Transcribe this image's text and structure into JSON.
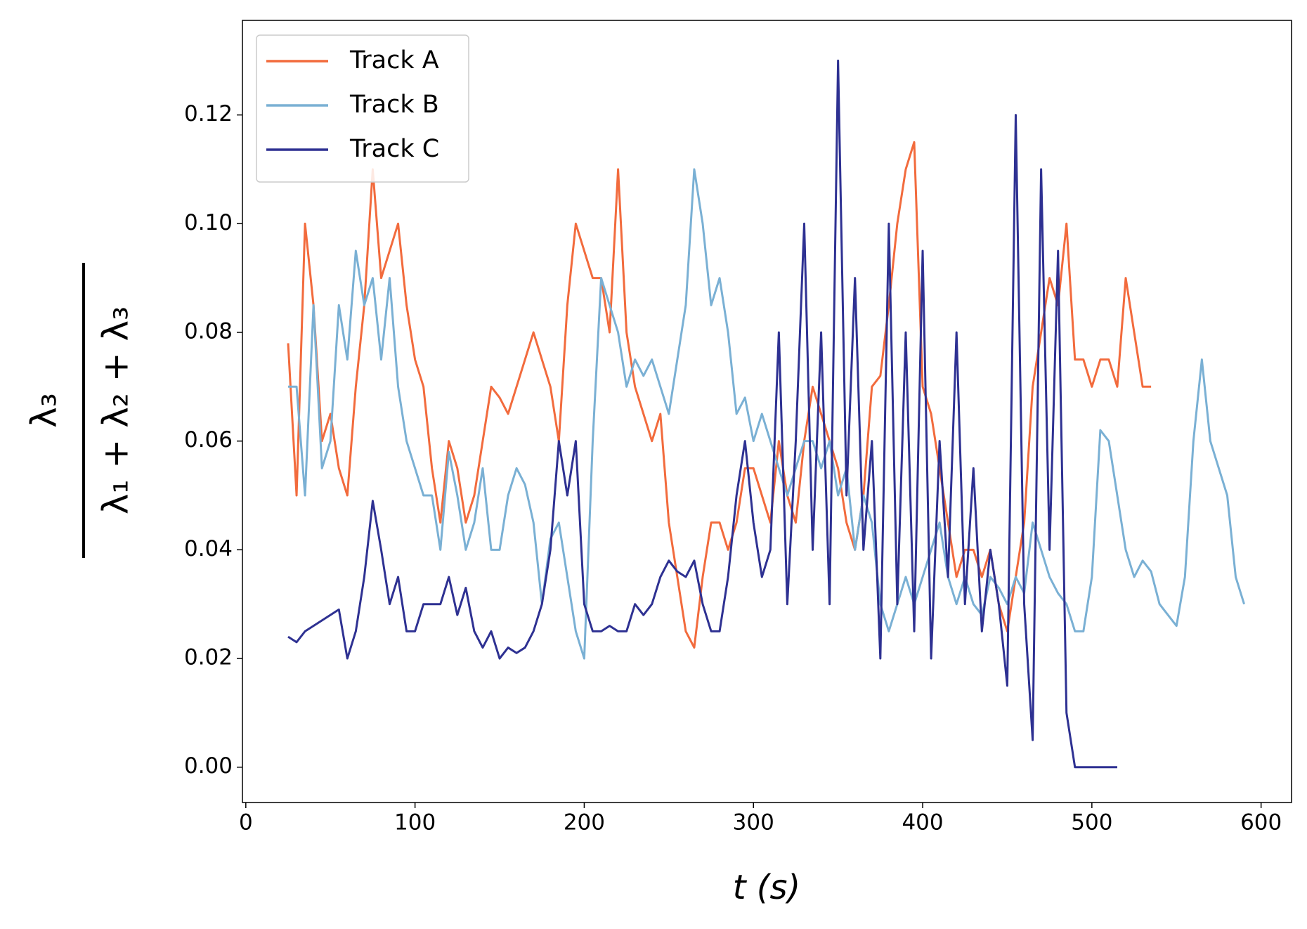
{
  "chart_data": {
    "type": "line",
    "xlabel": "t (s)",
    "ylabel": {
      "numerator": "λ₃",
      "denominator": "λ₁ + λ₂ + λ₃"
    },
    "xlim": [
      -2,
      618
    ],
    "ylim": [
      -0.0065,
      0.1374
    ],
    "xticks": [
      0,
      100,
      200,
      300,
      400,
      500,
      600
    ],
    "yticks": [
      {
        "value": 0,
        "label": "0.00"
      },
      {
        "value": 0.02,
        "label": "0.02"
      },
      {
        "value": 0.04,
        "label": "0.04"
      },
      {
        "value": 0.06,
        "label": "0.06"
      },
      {
        "value": 0.08,
        "label": "0.08"
      },
      {
        "value": 0.1,
        "label": "0.10"
      },
      {
        "value": 0.12,
        "label": "0.12"
      }
    ],
    "legend": "upper left",
    "series": [
      {
        "name": "Track A",
        "color": "#f26b3d",
        "x": [
          25,
          30,
          35,
          40,
          45,
          50,
          55,
          60,
          65,
          70,
          75,
          80,
          85,
          90,
          95,
          100,
          105,
          110,
          115,
          120,
          125,
          130,
          135,
          140,
          145,
          150,
          155,
          160,
          165,
          170,
          175,
          180,
          185,
          190,
          195,
          200,
          205,
          210,
          215,
          220,
          225,
          230,
          235,
          240,
          245,
          250,
          255,
          260,
          265,
          270,
          275,
          280,
          285,
          290,
          295,
          300,
          305,
          310,
          315,
          320,
          325,
          330,
          335,
          340,
          345,
          350,
          355,
          360,
          365,
          370,
          375,
          380,
          385,
          390,
          395,
          400,
          405,
          410,
          415,
          420,
          425,
          430,
          435,
          440,
          445,
          450,
          455,
          460,
          465,
          470,
          475,
          480,
          485,
          490,
          495,
          500,
          505,
          510,
          515,
          520,
          525,
          530,
          535
        ],
        "values": [
          0.078,
          0.05,
          0.1,
          0.085,
          0.06,
          0.065,
          0.055,
          0.05,
          0.07,
          0.085,
          0.11,
          0.09,
          0.095,
          0.1,
          0.085,
          0.075,
          0.07,
          0.055,
          0.045,
          0.06,
          0.055,
          0.045,
          0.05,
          0.06,
          0.07,
          0.068,
          0.065,
          0.07,
          0.075,
          0.08,
          0.075,
          0.07,
          0.06,
          0.085,
          0.1,
          0.095,
          0.09,
          0.09,
          0.08,
          0.11,
          0.08,
          0.07,
          0.065,
          0.06,
          0.065,
          0.045,
          0.035,
          0.025,
          0.022,
          0.035,
          0.045,
          0.045,
          0.04,
          0.045,
          0.055,
          0.055,
          0.05,
          0.045,
          0.06,
          0.05,
          0.045,
          0.06,
          0.07,
          0.065,
          0.06,
          0.055,
          0.045,
          0.04,
          0.05,
          0.07,
          0.072,
          0.085,
          0.1,
          0.11,
          0.115,
          0.07,
          0.065,
          0.055,
          0.045,
          0.035,
          0.04,
          0.04,
          0.035,
          0.04,
          0.03,
          0.025,
          0.035,
          0.045,
          0.07,
          0.08,
          0.09,
          0.085,
          0.1,
          0.075,
          0.075,
          0.07,
          0.075,
          0.075,
          0.07,
          0.09,
          0.08,
          0.07,
          0.07
        ]
      },
      {
        "name": "Track B",
        "color": "#7ab0d4",
        "x": [
          25,
          30,
          35,
          40,
          45,
          50,
          55,
          60,
          65,
          70,
          75,
          80,
          85,
          90,
          95,
          100,
          105,
          110,
          115,
          120,
          125,
          130,
          135,
          140,
          145,
          150,
          155,
          160,
          165,
          170,
          175,
          180,
          185,
          190,
          195,
          200,
          205,
          210,
          215,
          220,
          225,
          230,
          235,
          240,
          245,
          250,
          255,
          260,
          265,
          270,
          275,
          280,
          285,
          290,
          295,
          300,
          305,
          310,
          315,
          320,
          325,
          330,
          335,
          340,
          345,
          350,
          355,
          360,
          365,
          370,
          375,
          380,
          385,
          390,
          395,
          400,
          405,
          410,
          415,
          420,
          425,
          430,
          435,
          440,
          445,
          450,
          455,
          460,
          465,
          470,
          475,
          480,
          485,
          490,
          495,
          500,
          505,
          510,
          515,
          520,
          525,
          530,
          535,
          540,
          545,
          550,
          555,
          560,
          565,
          570,
          575,
          580,
          585,
          590
        ],
        "values": [
          0.07,
          0.07,
          0.05,
          0.085,
          0.055,
          0.06,
          0.085,
          0.075,
          0.095,
          0.085,
          0.09,
          0.075,
          0.09,
          0.07,
          0.06,
          0.055,
          0.05,
          0.05,
          0.04,
          0.058,
          0.05,
          0.04,
          0.045,
          0.055,
          0.04,
          0.04,
          0.05,
          0.055,
          0.052,
          0.045,
          0.03,
          0.042,
          0.045,
          0.035,
          0.025,
          0.02,
          0.06,
          0.09,
          0.085,
          0.08,
          0.07,
          0.075,
          0.072,
          0.075,
          0.07,
          0.065,
          0.075,
          0.085,
          0.11,
          0.1,
          0.085,
          0.09,
          0.08,
          0.065,
          0.068,
          0.06,
          0.065,
          0.06,
          0.055,
          0.05,
          0.055,
          0.06,
          0.06,
          0.055,
          0.06,
          0.05,
          0.055,
          0.04,
          0.05,
          0.045,
          0.03,
          0.025,
          0.03,
          0.035,
          0.03,
          0.035,
          0.04,
          0.045,
          0.035,
          0.03,
          0.035,
          0.03,
          0.028,
          0.035,
          0.033,
          0.03,
          0.035,
          0.032,
          0.045,
          0.04,
          0.035,
          0.032,
          0.03,
          0.025,
          0.025,
          0.035,
          0.062,
          0.06,
          0.05,
          0.04,
          0.035,
          0.038,
          0.036,
          0.03,
          0.028,
          0.026,
          0.035,
          0.06,
          0.075,
          0.06,
          0.055,
          0.05,
          0.035,
          0.03
        ]
      },
      {
        "name": "Track C",
        "color": "#2e3192",
        "x": [
          25,
          30,
          35,
          40,
          45,
          50,
          55,
          60,
          65,
          70,
          75,
          80,
          85,
          90,
          95,
          100,
          105,
          110,
          115,
          120,
          125,
          130,
          135,
          140,
          145,
          150,
          155,
          160,
          165,
          170,
          175,
          180,
          185,
          190,
          195,
          200,
          205,
          210,
          215,
          220,
          225,
          230,
          235,
          240,
          245,
          250,
          255,
          260,
          265,
          270,
          275,
          280,
          285,
          290,
          295,
          300,
          305,
          310,
          315,
          320,
          325,
          330,
          335,
          340,
          345,
          350,
          355,
          360,
          365,
          370,
          375,
          380,
          385,
          390,
          395,
          400,
          405,
          410,
          415,
          420,
          425,
          430,
          435,
          440,
          445,
          450,
          455,
          460,
          465,
          470,
          475,
          480,
          485,
          490,
          495,
          500,
          505,
          510,
          515
        ],
        "values": [
          0.024,
          0.023,
          0.025,
          0.026,
          0.027,
          0.028,
          0.029,
          0.02,
          0.025,
          0.035,
          0.049,
          0.04,
          0.03,
          0.035,
          0.025,
          0.025,
          0.03,
          0.03,
          0.03,
          0.035,
          0.028,
          0.033,
          0.025,
          0.022,
          0.025,
          0.02,
          0.022,
          0.021,
          0.022,
          0.025,
          0.03,
          0.04,
          0.06,
          0.05,
          0.06,
          0.03,
          0.025,
          0.025,
          0.026,
          0.025,
          0.025,
          0.03,
          0.028,
          0.03,
          0.035,
          0.038,
          0.036,
          0.035,
          0.038,
          0.03,
          0.025,
          0.025,
          0.035,
          0.05,
          0.06,
          0.045,
          0.035,
          0.04,
          0.08,
          0.03,
          0.06,
          0.1,
          0.04,
          0.08,
          0.03,
          0.13,
          0.05,
          0.09,
          0.04,
          0.06,
          0.02,
          0.1,
          0.03,
          0.08,
          0.025,
          0.095,
          0.02,
          0.06,
          0.035,
          0.08,
          0.03,
          0.055,
          0.025,
          0.04,
          0.03,
          0.015,
          0.12,
          0.03,
          0.005,
          0.11,
          0.04,
          0.095,
          0.01,
          0,
          0,
          0,
          0,
          0,
          0
        ]
      }
    ]
  }
}
